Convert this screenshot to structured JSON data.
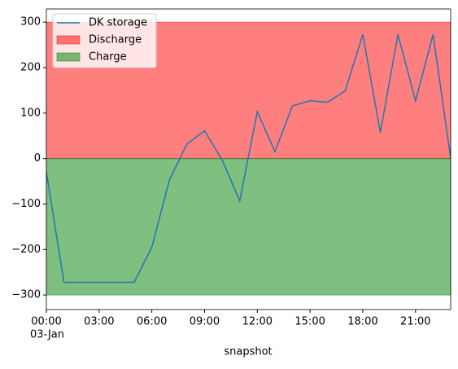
{
  "chart_data": {
    "type": "line",
    "x_label": "snapshot",
    "x_date_label": "03-Jan",
    "x": [
      0,
      1,
      2,
      3,
      4,
      5,
      6,
      7,
      8,
      9,
      10,
      11,
      12,
      13,
      14,
      15,
      16,
      17,
      18,
      19,
      20,
      21,
      22,
      23
    ],
    "xlim": [
      0,
      23
    ],
    "xticks": [
      {
        "value": 0,
        "label": "00:00"
      },
      {
        "value": 3,
        "label": "03:00"
      },
      {
        "value": 6,
        "label": "06:00"
      },
      {
        "value": 9,
        "label": "09:00"
      },
      {
        "value": 12,
        "label": "12:00"
      },
      {
        "value": 15,
        "label": "15:00"
      },
      {
        "value": 18,
        "label": "18:00"
      },
      {
        "value": 21,
        "label": "21:00"
      }
    ],
    "ylim": [
      -332,
      329
    ],
    "yticks": [
      {
        "value": -300,
        "label": "−300"
      },
      {
        "value": -200,
        "label": "−200"
      },
      {
        "value": -100,
        "label": "−100"
      },
      0,
      100,
      200,
      300
    ],
    "legend": "upper left",
    "series": [
      {
        "name": "DK storage",
        "kind": "line",
        "color": "#1f77b4",
        "values": [
          -30,
          -272,
          -272,
          -272,
          -272,
          -272,
          -195,
          -47,
          32,
          61,
          -3,
          -93,
          103,
          15,
          116,
          127,
          124,
          149,
          273,
          57,
          273,
          127,
          273,
          0
        ]
      },
      {
        "name": "Discharge",
        "kind": "area",
        "color": "#ff0000",
        "values": [
          300,
          300,
          300,
          300,
          300,
          300,
          300,
          300,
          300,
          300,
          300,
          300,
          300,
          300,
          300,
          300,
          300,
          300,
          300,
          300,
          300,
          300,
          300,
          300
        ]
      },
      {
        "name": "Charge",
        "kind": "area",
        "color": "#008000",
        "values": [
          -300,
          -300,
          -300,
          -300,
          -300,
          -300,
          -300,
          -300,
          -300,
          -300,
          -300,
          -300,
          -300,
          -300,
          -300,
          -300,
          -300,
          -300,
          -300,
          -300,
          -300,
          -300,
          -300,
          -300
        ]
      }
    ]
  }
}
